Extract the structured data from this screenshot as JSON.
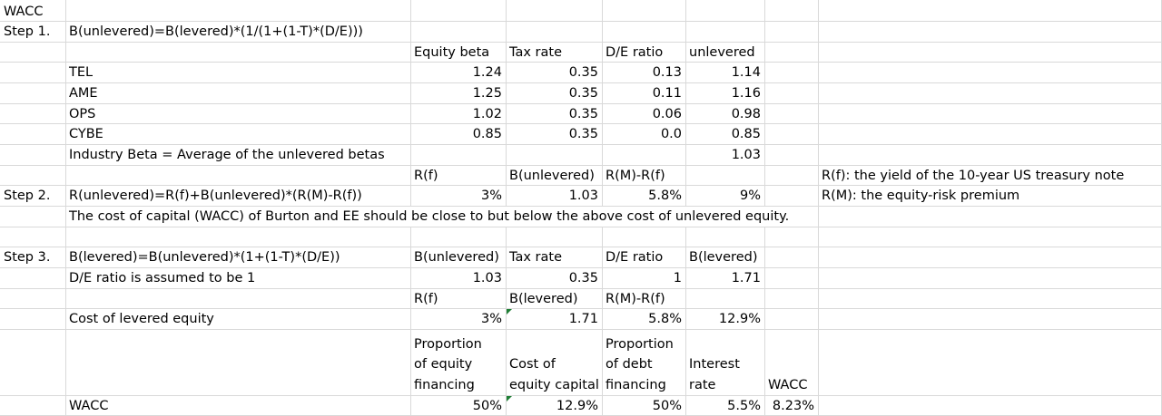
{
  "sheet": {
    "title": "WACC",
    "step1": {
      "label": "Step 1.",
      "formula": "B(unlevered)=B(levered)*(1/(1+(1-T)*(D/E)))",
      "headers": [
        "Equity beta",
        "Tax rate",
        "D/E ratio",
        "unlevered"
      ],
      "rows": [
        {
          "name": "TEL",
          "beta": "1.24",
          "tax": "0.35",
          "de": "0.13",
          "unlev": "1.14"
        },
        {
          "name": "AME",
          "beta": "1.25",
          "tax": "0.35",
          "de": "0.11",
          "unlev": "1.16"
        },
        {
          "name": "OPS",
          "beta": "1.02",
          "tax": "0.35",
          "de": "0.06",
          "unlev": "0.98"
        },
        {
          "name": "CYBE",
          "beta": "0.85",
          "tax": "0.35",
          "de": "0.0",
          "unlev": "0.85"
        }
      ],
      "industry_label": "Industry Beta = Average of the unlevered betas",
      "industry_value": "1.03"
    },
    "step2": {
      "label": "Step 2.",
      "headers": [
        "R(f)",
        "B(unlevered)",
        "R(M)-R(f)"
      ],
      "formula": "R(unlevered)=R(f)+B(unlevered)*(R(M)-R(f))",
      "values": [
        "3%",
        "1.03",
        "5.8%",
        "9%"
      ],
      "note1": "R(f): the yield of the 10-year US treasury note",
      "note2": "R(M): the equity-risk premium",
      "conclusion": "The cost of capital (WACC) of Burton and EE should be close to but below the above cost of unlevered equity."
    },
    "step3": {
      "label": "Step 3.",
      "formula": "B(levered)=B(unlevered)*(1+(1-T)*(D/E))",
      "headers": [
        "B(unlevered)",
        "Tax rate",
        "D/E ratio",
        "B(levered)"
      ],
      "assume_label": "D/E ratio is assumed to be 1",
      "assume_values": [
        "1.03",
        "0.35",
        "1",
        "1.71"
      ],
      "headers2": [
        "R(f)",
        "B(levered)",
        "R(M)-R(f)"
      ],
      "cost_label": "Cost of levered equity",
      "cost_values": [
        "3%",
        "1.71",
        "5.8%",
        "12.9%"
      ],
      "wacc_headers": {
        "h1": [
          "Proportion",
          "of equity",
          "financing"
        ],
        "h2": [
          "Cost of",
          "equity capital"
        ],
        "h3": [
          "Proportion",
          "of debt",
          "financing"
        ],
        "h4": [
          "Interest",
          "rate"
        ],
        "h5": "WACC"
      },
      "wacc_label": "WACC",
      "wacc_values": [
        "50%",
        "12.9%",
        "50%",
        "5.5%",
        "8.23%"
      ]
    },
    "colors": {
      "gridline": "#d9d9d9",
      "indicator": "#1e7e34"
    }
  }
}
